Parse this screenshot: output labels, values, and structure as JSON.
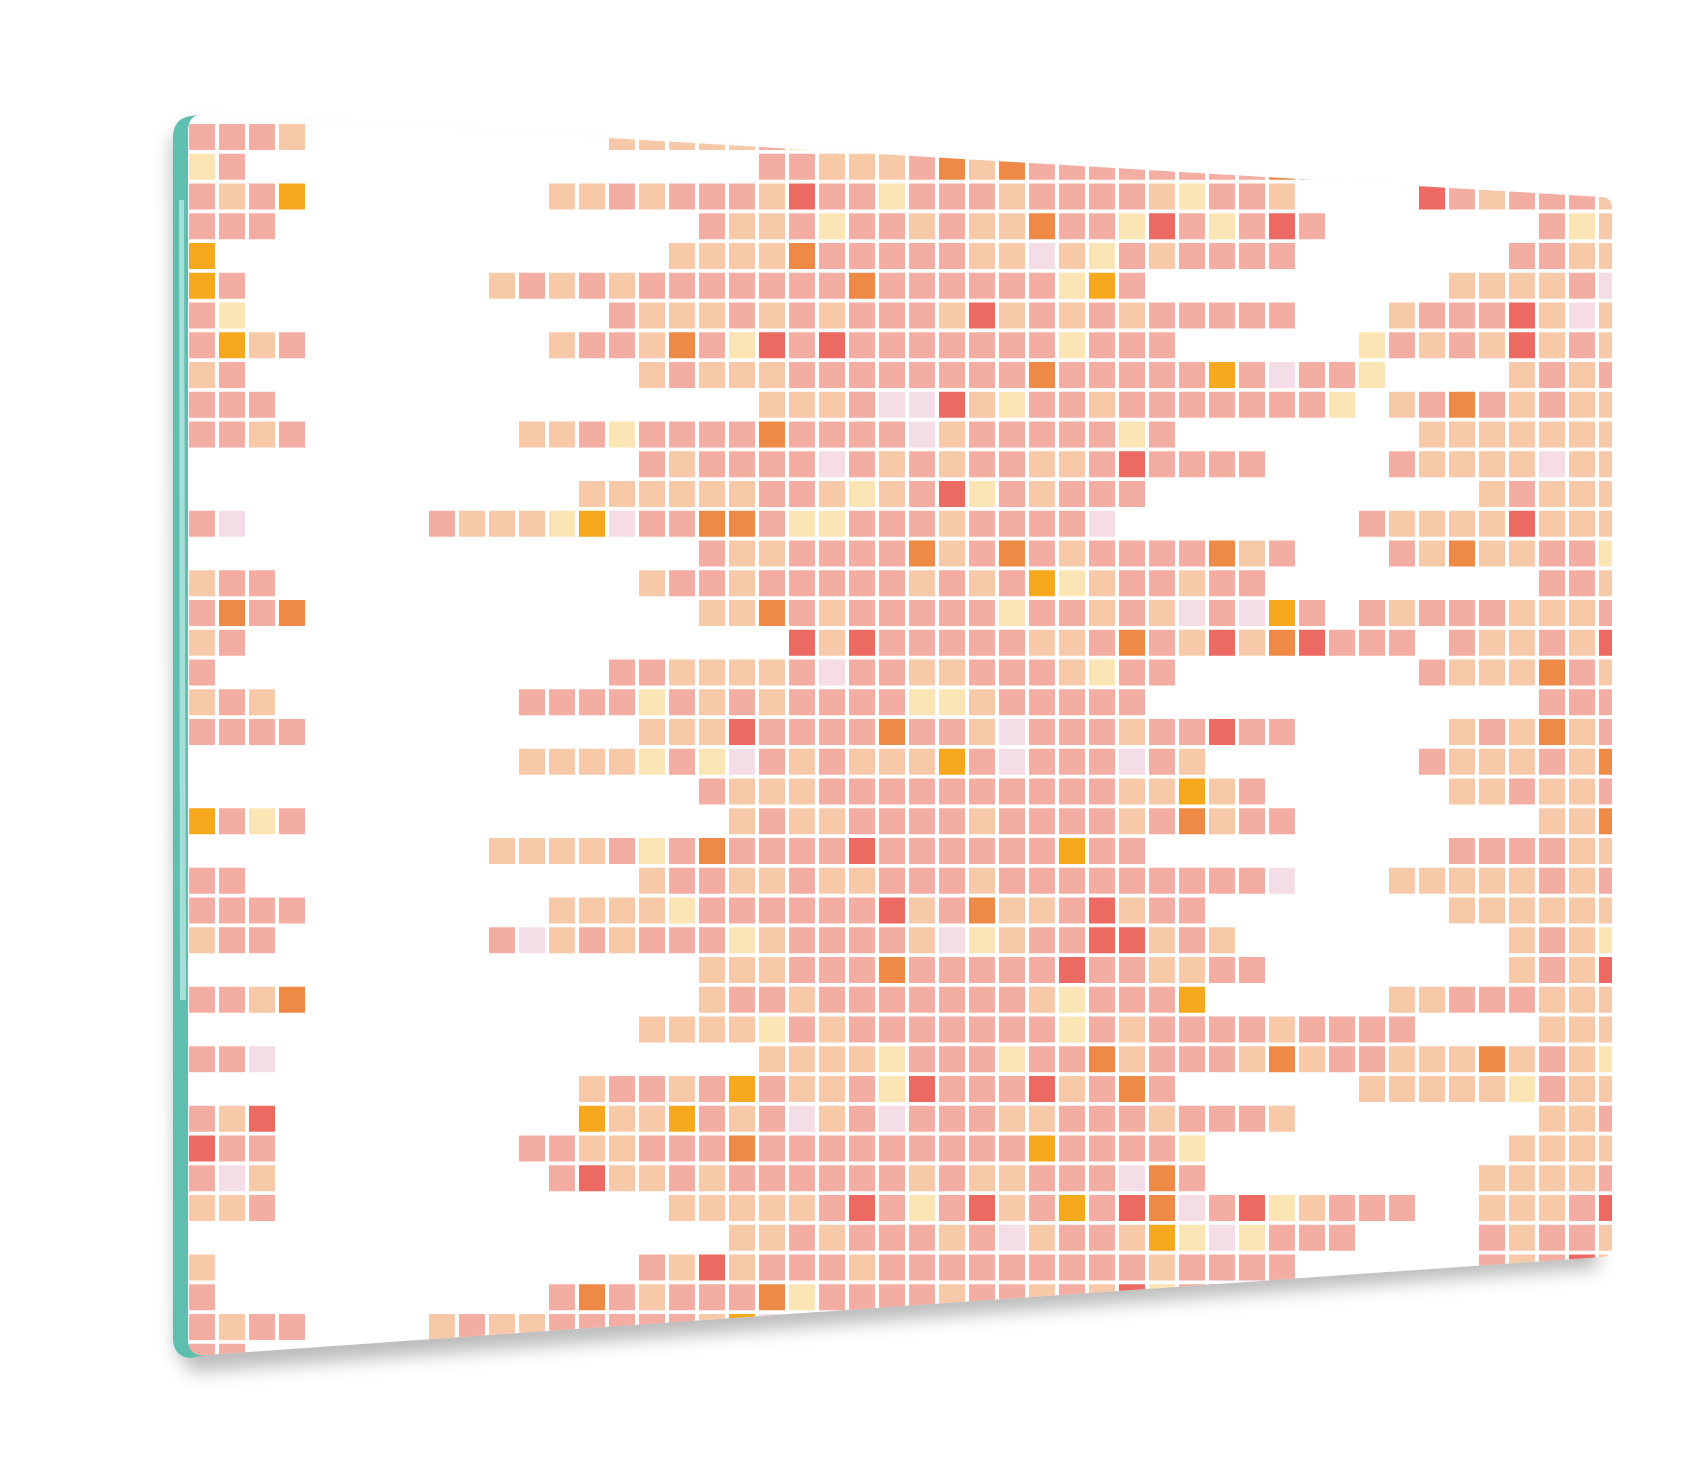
{
  "product": {
    "subject": "glass-panel",
    "pattern_style": "pixel-mosaic",
    "tile_shape": "square"
  },
  "colors": {
    "background": "#ffffff",
    "panel_surface": "#ffffff",
    "glass_edge": "#5fbfae",
    "glass_edge_highlight": "#b9e6de",
    "shadow": "#6a6a6a"
  },
  "palette": {
    "peach": "#f7c9a8",
    "salmon": "#f3ada3",
    "orange": "#ef8a46",
    "amber": "#f6a91d",
    "coral": "#ec6a62",
    "cream": "#fbe5b5",
    "lilac": "#f4dde6"
  }
}
